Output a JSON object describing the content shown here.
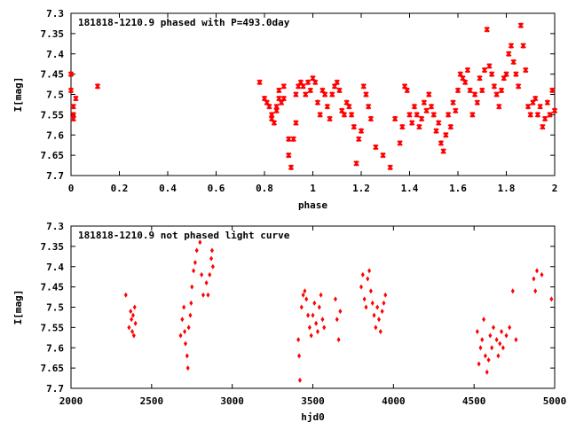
{
  "chart_data": [
    {
      "type": "scatter",
      "title": "181818-1210.9 phased with P=493.0day",
      "xlabel": "phase",
      "ylabel": "I[mag]",
      "xlim": [
        0,
        2
      ],
      "ylim": [
        7.3,
        7.7
      ],
      "y_inverted": true,
      "x_ticks": [
        "0",
        "0.2",
        "0.4",
        "0.6",
        "0.8",
        "1",
        "1.2",
        "1.4",
        "1.6",
        "1.8",
        "2"
      ],
      "y_ticks": [
        "7.3",
        "7.35",
        "7.4",
        "7.45",
        "7.5",
        "7.55",
        "7.6",
        "7.65",
        "7.7"
      ],
      "grid": false,
      "marker_color": "#ff0000",
      "series": [
        {
          "x": [
            0.0,
            0.0,
            0.01,
            0.01,
            0.01,
            0.02,
            0.11,
            0.78,
            0.8,
            0.81,
            0.82,
            0.83,
            0.83,
            0.84,
            0.85,
            0.85,
            0.86,
            0.86,
            0.87,
            0.88,
            0.88,
            0.9,
            0.9,
            0.91,
            0.92,
            0.93,
            0.93,
            0.94,
            0.95,
            0.96,
            0.97,
            0.98,
            0.99,
            1.0,
            1.01,
            1.02,
            1.03,
            1.04,
            1.05,
            1.06,
            1.07,
            1.08,
            1.09,
            1.1,
            1.11,
            1.12,
            1.13,
            1.14,
            1.15,
            1.16,
            1.17,
            1.18,
            1.19,
            1.2,
            1.21,
            1.22,
            1.23,
            1.24,
            1.26,
            1.29,
            1.32,
            1.34,
            1.36,
            1.37,
            1.38,
            1.39,
            1.4,
            1.41,
            1.42,
            1.43,
            1.44,
            1.45,
            1.46,
            1.47,
            1.48,
            1.49,
            1.5,
            1.51,
            1.52,
            1.53,
            1.54,
            1.55,
            1.56,
            1.57,
            1.58,
            1.59,
            1.6,
            1.61,
            1.62,
            1.63,
            1.64,
            1.65,
            1.66,
            1.67,
            1.68,
            1.69,
            1.7,
            1.71,
            1.72,
            1.73,
            1.74,
            1.75,
            1.76,
            1.77,
            1.78,
            1.79,
            1.8,
            1.81,
            1.82,
            1.83,
            1.84,
            1.85,
            1.86,
            1.87,
            1.88,
            1.89,
            1.9,
            1.91,
            1.92,
            1.93,
            1.94,
            1.95,
            1.96,
            1.97,
            1.98,
            1.99,
            2.0
          ],
          "y": [
            7.45,
            7.49,
            7.53,
            7.56,
            7.55,
            7.51,
            7.48,
            7.47,
            7.51,
            7.52,
            7.53,
            7.55,
            7.56,
            7.57,
            7.53,
            7.54,
            7.51,
            7.49,
            7.52,
            7.48,
            7.51,
            7.61,
            7.65,
            7.68,
            7.61,
            7.57,
            7.5,
            7.48,
            7.47,
            7.48,
            7.5,
            7.47,
            7.49,
            7.46,
            7.47,
            7.52,
            7.55,
            7.49,
            7.5,
            7.53,
            7.56,
            7.5,
            7.48,
            7.47,
            7.49,
            7.54,
            7.55,
            7.52,
            7.53,
            7.55,
            7.58,
            7.67,
            7.61,
            7.59,
            7.48,
            7.5,
            7.53,
            7.56,
            7.63,
            7.65,
            7.68,
            7.56,
            7.62,
            7.58,
            7.48,
            7.49,
            7.55,
            7.57,
            7.53,
            7.55,
            7.58,
            7.56,
            7.52,
            7.54,
            7.5,
            7.53,
            7.55,
            7.59,
            7.57,
            7.62,
            7.64,
            7.6,
            7.55,
            7.58,
            7.52,
            7.54,
            7.49,
            7.45,
            7.46,
            7.47,
            7.44,
            7.49,
            7.55,
            7.5,
            7.52,
            7.46,
            7.49,
            7.44,
            7.34,
            7.43,
            7.45,
            7.48,
            7.5,
            7.53,
            7.49,
            7.46,
            7.45,
            7.4,
            7.38,
            7.42,
            7.45,
            7.48,
            7.33,
            7.38,
            7.44,
            7.53,
            7.55,
            7.52,
            7.51,
            7.55,
            7.53,
            7.58,
            7.56,
            7.52,
            7.55,
            7.49,
            7.54
          ]
        }
      ]
    },
    {
      "type": "scatter",
      "title": "181818-1210.9 not phased light curve",
      "xlabel": "hjd0",
      "ylabel": "I[mag]",
      "xlim": [
        2000,
        5000
      ],
      "ylim": [
        7.3,
        7.7
      ],
      "y_inverted": true,
      "x_ticks": [
        "2000",
        "2500",
        "3000",
        "3500",
        "4000",
        "4500",
        "5000"
      ],
      "y_ticks": [
        "7.3",
        "7.35",
        "7.4",
        "7.45",
        "7.5",
        "7.55",
        "7.6",
        "7.65",
        "7.7"
      ],
      "grid": false,
      "marker_color": "#ff0000",
      "series": [
        {
          "x": [
            2340,
            2360,
            2370,
            2375,
            2380,
            2385,
            2390,
            2395,
            2400,
            2680,
            2690,
            2700,
            2705,
            2710,
            2720,
            2725,
            2730,
            2740,
            2745,
            2750,
            2760,
            2770,
            2780,
            2800,
            2810,
            2820,
            2840,
            2850,
            2860,
            2870,
            2875,
            2880,
            3410,
            3415,
            3420,
            3430,
            3440,
            3450,
            3460,
            3470,
            3480,
            3490,
            3500,
            3510,
            3520,
            3530,
            3540,
            3550,
            3560,
            3570,
            3640,
            3650,
            3660,
            3670,
            3800,
            3810,
            3820,
            3830,
            3840,
            3850,
            3860,
            3870,
            3880,
            3890,
            3900,
            3910,
            3920,
            3930,
            3940,
            3950,
            4520,
            4530,
            4540,
            4550,
            4560,
            4570,
            4580,
            4590,
            4600,
            4610,
            4620,
            4640,
            4650,
            4660,
            4670,
            4680,
            4700,
            4720,
            4740,
            4760,
            4870,
            4880,
            4890,
            4920,
            4980
          ],
          "y": [
            7.47,
            7.55,
            7.51,
            7.53,
            7.56,
            7.52,
            7.57,
            7.5,
            7.54,
            7.57,
            7.53,
            7.5,
            7.56,
            7.59,
            7.62,
            7.65,
            7.55,
            7.52,
            7.49,
            7.45,
            7.41,
            7.39,
            7.36,
            7.34,
            7.42,
            7.47,
            7.44,
            7.47,
            7.42,
            7.38,
            7.36,
            7.4,
            7.58,
            7.62,
            7.68,
            7.5,
            7.47,
            7.46,
            7.48,
            7.52,
            7.55,
            7.57,
            7.52,
            7.49,
            7.54,
            7.56,
            7.5,
            7.47,
            7.53,
            7.55,
            7.48,
            7.53,
            7.58,
            7.51,
            7.45,
            7.42,
            7.48,
            7.5,
            7.43,
            7.41,
            7.46,
            7.49,
            7.52,
            7.55,
            7.5,
            7.53,
            7.56,
            7.51,
            7.49,
            7.47,
            7.56,
            7.64,
            7.6,
            7.58,
            7.53,
            7.62,
            7.66,
            7.63,
            7.57,
            7.6,
            7.55,
            7.58,
            7.62,
            7.59,
            7.56,
            7.6,
            7.57,
            7.55,
            7.46,
            7.58,
            7.43,
            7.46,
            7.41,
            7.42,
            7.48
          ]
        }
      ]
    }
  ]
}
